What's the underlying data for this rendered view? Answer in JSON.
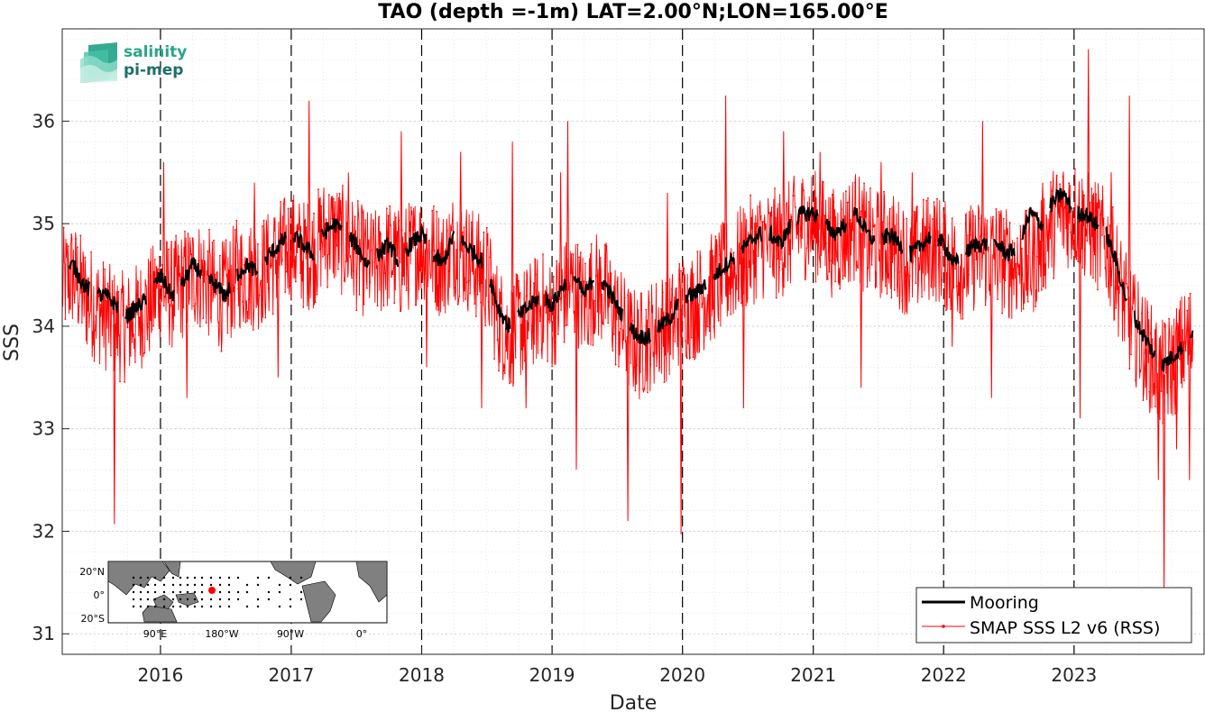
{
  "logo": {
    "line1": "salinity",
    "line2": "pi-mep",
    "color_top": "#2aa58c",
    "color_bottom": "#1e6f6a"
  },
  "inset_map": {
    "lat_labels": [
      "20°N",
      "0°",
      "20°S"
    ],
    "lon_labels": [
      "90°E",
      "180°W",
      "90°W",
      "0°"
    ],
    "land_color": "#808080",
    "ocean_color": "#ffffff",
    "mooring_marker_color": "#ff0000"
  },
  "chart_data": {
    "type": "line",
    "title": "TAO (depth =-1m) LAT=2.00°N;LON=165.00°E",
    "xlabel": "Date",
    "ylabel": "SSS",
    "xlim": [
      "2015-04-01",
      "2023-12-31"
    ],
    "ylim": [
      30.8,
      36.9
    ],
    "x_ticks": [
      "2016",
      "2017",
      "2018",
      "2019",
      "2020",
      "2021",
      "2022",
      "2023"
    ],
    "y_ticks": [
      31,
      32,
      33,
      34,
      35,
      36
    ],
    "grid": true,
    "minor_grid": true,
    "year_markers": "dashed vertical lines at each January 1",
    "legend_position": "bottom-right",
    "series": [
      {
        "name": "Mooring",
        "color": "#000000",
        "style": "solid thick line",
        "x": [
          "2015-04-01",
          "2015-05-01",
          "2015-06-01",
          "2015-07-01",
          "2015-08-01",
          "2015-09-01",
          "2015-10-01",
          "2015-11-01",
          "2015-12-01",
          "2016-01-01",
          "2016-02-01",
          "2016-03-01",
          "2016-04-01",
          "2016-05-01",
          "2016-06-01",
          "2016-07-01",
          "2016-08-01",
          "2016-09-01",
          "2016-10-01",
          "2016-11-01",
          "2016-12-01",
          "2017-01-01",
          "2017-02-01",
          "2017-03-01",
          "2017-04-01",
          "2017-05-01",
          "2017-06-01",
          "2017-07-01",
          "2017-08-01",
          "2017-09-01",
          "2017-10-01",
          "2017-11-01",
          "2017-12-01",
          "2018-01-01",
          "2018-02-01",
          "2018-03-01",
          "2018-04-01",
          "2018-05-01",
          "2018-06-01",
          "2018-07-01",
          "2018-08-01",
          "2018-09-01",
          "2018-10-01",
          "2018-11-01",
          "2018-12-01",
          "2019-01-01",
          "2019-02-01",
          "2019-03-01",
          "2019-04-01",
          "2019-05-01",
          "2019-06-01",
          "2019-07-01",
          "2019-08-01",
          "2019-09-01",
          "2019-10-01",
          "2019-11-01",
          "2019-12-01",
          "2020-01-01",
          "2020-02-01",
          "2020-03-01",
          "2020-04-01",
          "2020-05-01",
          "2020-06-01",
          "2020-07-01",
          "2020-08-01",
          "2020-09-01",
          "2020-10-01",
          "2020-11-01",
          "2020-12-01",
          "2021-01-01",
          "2021-02-01",
          "2021-03-01",
          "2021-04-01",
          "2021-05-01",
          "2021-06-01",
          "2021-07-01",
          "2021-08-01",
          "2021-09-01",
          "2021-10-01",
          "2021-11-01",
          "2021-12-01",
          "2022-01-01",
          "2022-02-01",
          "2022-03-01",
          "2022-04-01",
          "2022-05-01",
          "2022-06-01",
          "2022-07-01",
          "2022-08-01",
          "2022-09-01",
          "2022-10-01",
          "2022-11-01",
          "2022-12-01",
          "2023-01-01",
          "2023-02-01",
          "2023-03-01",
          "2023-04-01",
          "2023-05-01",
          "2023-06-01",
          "2023-07-01",
          "2023-08-01",
          "2023-09-01",
          "2023-10-01",
          "2023-11-01",
          "2023-12-01"
        ],
        "y": [
          34.5,
          34.6,
          34.4,
          34.3,
          34.3,
          34.2,
          34.1,
          34.2,
          34.3,
          34.5,
          34.3,
          34.4,
          34.6,
          34.5,
          34.4,
          34.3,
          34.5,
          34.6,
          34.5,
          34.7,
          34.8,
          34.9,
          34.8,
          34.7,
          34.9,
          35.0,
          34.9,
          34.8,
          34.6,
          34.7,
          34.8,
          34.6,
          34.8,
          34.9,
          34.7,
          34.6,
          34.9,
          34.8,
          34.7,
          34.6,
          34.2,
          34.0,
          34.1,
          34.2,
          34.3,
          34.2,
          34.4,
          34.5,
          34.3,
          34.5,
          34.4,
          34.2,
          34.0,
          33.9,
          33.9,
          34.0,
          34.1,
          34.3,
          34.3,
          34.4,
          34.5,
          34.6,
          34.7,
          34.8,
          34.9,
          34.9,
          34.8,
          35.0,
          35.1,
          35.1,
          35.0,
          34.9,
          35.0,
          35.1,
          34.9,
          34.8,
          34.9,
          34.8,
          34.7,
          34.8,
          34.9,
          34.8,
          34.6,
          34.7,
          34.8,
          34.8,
          34.8,
          34.7,
          34.8,
          35.1,
          35.0,
          35.2,
          35.3,
          35.1,
          35.1,
          35.0,
          34.9,
          34.6,
          34.2,
          34.0,
          33.8,
          33.6,
          33.7,
          33.8,
          33.9
        ]
      },
      {
        "name": "SMAP SSS L2 v6 (RSS)",
        "color": "#ff0000",
        "style": "thin line with small dots",
        "x": [
          "2015-04-01",
          "2015-05-01",
          "2015-06-01",
          "2015-07-01",
          "2015-08-01",
          "2015-09-01",
          "2015-10-01",
          "2015-11-01",
          "2015-12-01",
          "2016-01-01",
          "2016-02-01",
          "2016-03-01",
          "2016-04-01",
          "2016-05-01",
          "2016-06-01",
          "2016-07-01",
          "2016-08-01",
          "2016-09-01",
          "2016-10-01",
          "2016-11-01",
          "2016-12-01",
          "2017-01-01",
          "2017-02-01",
          "2017-03-01",
          "2017-04-01",
          "2017-05-01",
          "2017-06-01",
          "2017-07-01",
          "2017-08-01",
          "2017-09-01",
          "2017-10-01",
          "2017-11-01",
          "2017-12-01",
          "2018-01-01",
          "2018-02-01",
          "2018-03-01",
          "2018-04-01",
          "2018-05-01",
          "2018-06-01",
          "2018-07-01",
          "2018-08-01",
          "2018-09-01",
          "2018-10-01",
          "2018-11-01",
          "2018-12-01",
          "2019-01-01",
          "2019-02-01",
          "2019-03-01",
          "2019-04-01",
          "2019-05-01",
          "2019-06-01",
          "2019-07-01",
          "2019-08-01",
          "2019-09-01",
          "2019-10-01",
          "2019-11-01",
          "2019-12-01",
          "2020-01-01",
          "2020-02-01",
          "2020-03-01",
          "2020-04-01",
          "2020-05-01",
          "2020-06-01",
          "2020-07-01",
          "2020-08-01",
          "2020-09-01",
          "2020-10-01",
          "2020-11-01",
          "2020-12-01",
          "2021-01-01",
          "2021-02-01",
          "2021-03-01",
          "2021-04-01",
          "2021-05-01",
          "2021-06-01",
          "2021-07-01",
          "2021-08-01",
          "2021-09-01",
          "2021-10-01",
          "2021-11-01",
          "2021-12-01",
          "2022-01-01",
          "2022-02-01",
          "2022-03-01",
          "2022-04-01",
          "2022-05-01",
          "2022-06-01",
          "2022-07-01",
          "2022-08-01",
          "2022-09-01",
          "2022-10-01",
          "2022-11-01",
          "2022-12-01",
          "2023-01-01",
          "2023-02-01",
          "2023-03-01",
          "2023-04-01",
          "2023-05-01",
          "2023-06-01",
          "2023-07-01",
          "2023-08-01",
          "2023-09-01",
          "2023-10-01",
          "2023-11-01",
          "2023-12-01"
        ],
        "y": [
          34.4,
          34.5,
          34.3,
          34.2,
          34.1,
          34.0,
          34.0,
          34.1,
          34.2,
          34.4,
          34.3,
          34.4,
          34.5,
          34.5,
          34.3,
          34.3,
          34.5,
          34.5,
          34.5,
          34.6,
          34.7,
          34.8,
          34.7,
          34.7,
          34.9,
          34.9,
          34.8,
          34.7,
          34.6,
          34.6,
          34.7,
          34.6,
          34.7,
          34.8,
          34.7,
          34.6,
          34.8,
          34.7,
          34.6,
          34.5,
          34.1,
          33.9,
          34.0,
          34.1,
          34.2,
          34.1,
          34.3,
          34.4,
          34.2,
          34.4,
          34.3,
          34.1,
          33.9,
          33.8,
          33.9,
          34.0,
          34.0,
          34.2,
          34.2,
          34.3,
          34.4,
          34.5,
          34.6,
          34.7,
          34.8,
          34.8,
          34.8,
          34.9,
          35.0,
          35.0,
          34.9,
          34.8,
          34.9,
          35.0,
          34.8,
          34.8,
          34.8,
          34.7,
          34.6,
          34.7,
          34.8,
          34.7,
          34.6,
          34.6,
          34.7,
          34.7,
          34.7,
          34.6,
          34.6,
          34.6,
          34.8,
          35.0,
          35.1,
          35.1,
          35.0,
          34.9,
          34.8,
          34.5,
          34.1,
          33.9,
          33.7,
          33.5,
          33.6,
          33.8,
          33.9
        ],
        "spike_dates": [
          "2015-08-25",
          "2016-01-10",
          "2016-03-15",
          "2016-09-20",
          "2016-11-25",
          "2017-02-20",
          "2017-06-10",
          "2017-11-05",
          "2018-01-15",
          "2018-04-20",
          "2018-06-18",
          "2018-09-12",
          "2018-10-20",
          "2019-01-25",
          "2019-02-14",
          "2019-03-10",
          "2019-08-01",
          "2019-11-20",
          "2019-12-28",
          "2020-05-01",
          "2020-06-20",
          "2020-10-10",
          "2021-01-20",
          "2021-05-15",
          "2021-07-10",
          "2021-10-05",
          "2022-01-25",
          "2022-04-20",
          "2022-05-15",
          "2022-10-05",
          "2023-01-18",
          "2023-02-10",
          "2023-04-15",
          "2023-06-05",
          "2023-07-20",
          "2023-08-25",
          "2023-09-10",
          "2023-10-15",
          "2023-11-20"
        ],
        "spike_values": [
          32.07,
          35.6,
          33.3,
          35.4,
          33.5,
          36.2,
          35.5,
          35.9,
          33.6,
          35.7,
          33.2,
          35.8,
          33.2,
          35.5,
          36.0,
          32.6,
          32.1,
          35.3,
          31.97,
          36.25,
          33.2,
          35.9,
          35.7,
          33.4,
          35.6,
          35.5,
          33.8,
          36.0,
          33.3,
          35.4,
          33.1,
          36.7,
          35.5,
          36.25,
          33.4,
          32.5,
          31.4,
          32.8,
          32.5
        ]
      }
    ],
    "inset_mooring_location": {
      "lat": 2.0,
      "lon": 165.0
    }
  }
}
